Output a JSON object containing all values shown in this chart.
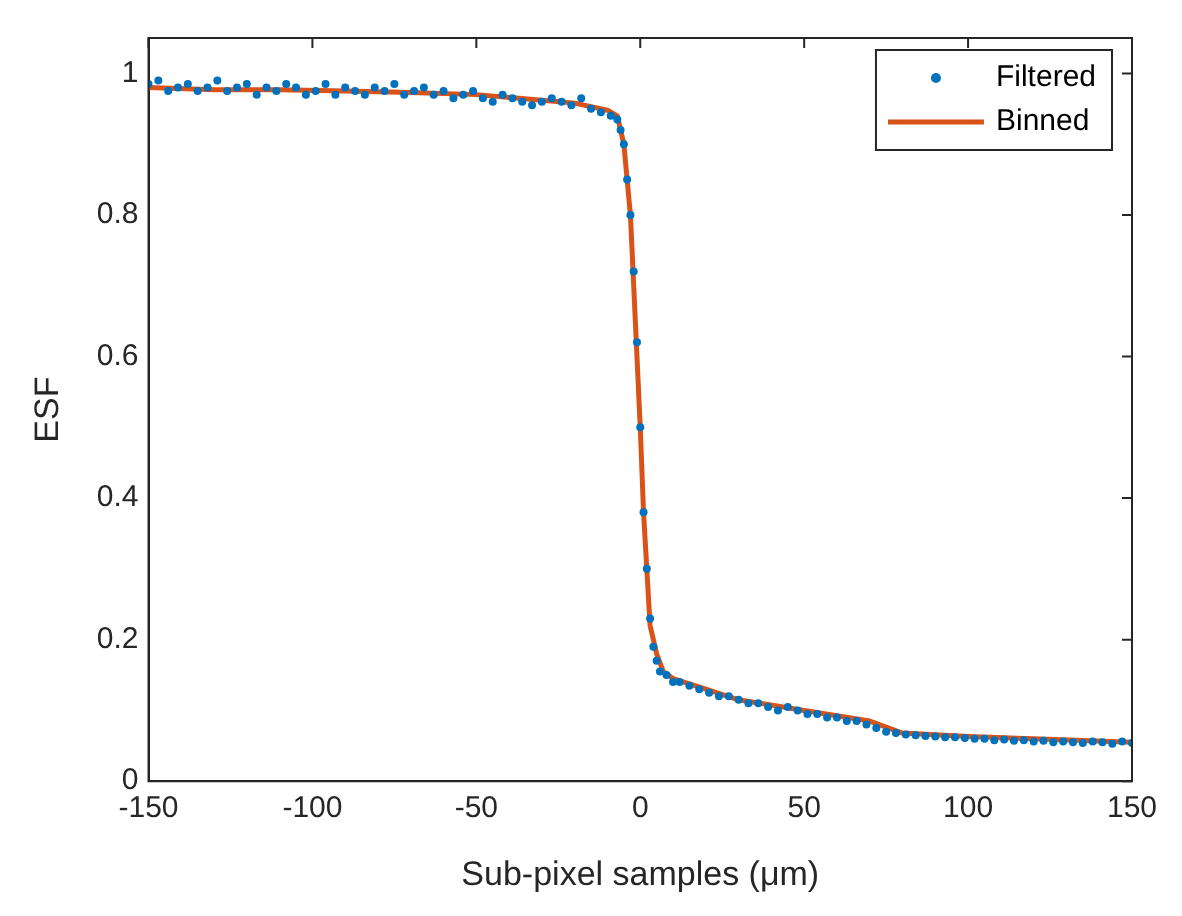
{
  "chart_data": {
    "type": "scatter",
    "xlabel": "Sub-pixel samples (μm)",
    "ylabel": "ESF",
    "xlim": [
      -150,
      150
    ],
    "xticks": [
      -150,
      -100,
      -50,
      0,
      50,
      100,
      150
    ],
    "ylim": [
      0,
      1.05
    ],
    "yticks": [
      0,
      0.2,
      0.4,
      0.6,
      0.8,
      1
    ],
    "grid": false,
    "legend": "top right",
    "series": [
      {
        "name": "Filtered",
        "type": "scatter",
        "marker": "circle",
        "color": "#0072bd",
        "x": [
          -150,
          -147,
          -144,
          -141,
          -138,
          -135,
          -132,
          -129,
          -126,
          -123,
          -120,
          -117,
          -114,
          -111,
          -108,
          -105,
          -102,
          -99,
          -96,
          -93,
          -90,
          -87,
          -84,
          -81,
          -78,
          -75,
          -72,
          -69,
          -66,
          -63,
          -60,
          -57,
          -54,
          -51,
          -48,
          -45,
          -42,
          -39,
          -36,
          -33,
          -30,
          -27,
          -24,
          -21,
          -18,
          -15,
          -12,
          -9,
          -7,
          -6,
          -5,
          -4,
          -3,
          -2,
          -1,
          0,
          1,
          2,
          3,
          4,
          5,
          6,
          8,
          10,
          12,
          15,
          18,
          21,
          24,
          27,
          30,
          33,
          36,
          39,
          42,
          45,
          48,
          51,
          54,
          57,
          60,
          63,
          66,
          69,
          72,
          75,
          78,
          81,
          84,
          87,
          90,
          93,
          96,
          99,
          102,
          105,
          108,
          111,
          114,
          117,
          120,
          123,
          126,
          129,
          132,
          135,
          138,
          141,
          144,
          147,
          150
        ],
        "values": [
          0.985,
          0.99,
          0.975,
          0.98,
          0.985,
          0.975,
          0.98,
          0.99,
          0.975,
          0.98,
          0.985,
          0.97,
          0.98,
          0.975,
          0.985,
          0.98,
          0.97,
          0.975,
          0.985,
          0.97,
          0.98,
          0.975,
          0.97,
          0.98,
          0.975,
          0.985,
          0.97,
          0.975,
          0.98,
          0.97,
          0.975,
          0.965,
          0.97,
          0.975,
          0.965,
          0.96,
          0.97,
          0.965,
          0.96,
          0.955,
          0.96,
          0.965,
          0.96,
          0.955,
          0.965,
          0.95,
          0.945,
          0.94,
          0.935,
          0.92,
          0.9,
          0.85,
          0.8,
          0.72,
          0.62,
          0.5,
          0.38,
          0.3,
          0.23,
          0.19,
          0.17,
          0.155,
          0.15,
          0.14,
          0.14,
          0.135,
          0.13,
          0.125,
          0.12,
          0.12,
          0.115,
          0.11,
          0.11,
          0.105,
          0.1,
          0.105,
          0.1,
          0.095,
          0.095,
          0.09,
          0.09,
          0.085,
          0.085,
          0.08,
          0.075,
          0.07,
          0.068,
          0.066,
          0.065,
          0.064,
          0.063,
          0.062,
          0.062,
          0.061,
          0.06,
          0.06,
          0.058,
          0.059,
          0.057,
          0.058,
          0.056,
          0.057,
          0.055,
          0.056,
          0.055,
          0.054,
          0.056,
          0.055,
          0.053,
          0.056,
          0.054
        ]
      },
      {
        "name": "Binned",
        "type": "line",
        "marker": "none",
        "line_style": "solid",
        "color": "#d95319",
        "x": [
          -150,
          -130,
          -110,
          -90,
          -70,
          -50,
          -30,
          -20,
          -10,
          -7,
          -5,
          -3,
          -1,
          0,
          1,
          3,
          5,
          7,
          10,
          20,
          30,
          50,
          70,
          80,
          100,
          120,
          150
        ],
        "values": [
          0.98,
          0.977,
          0.977,
          0.975,
          0.973,
          0.97,
          0.962,
          0.958,
          0.948,
          0.94,
          0.9,
          0.8,
          0.6,
          0.5,
          0.38,
          0.22,
          0.18,
          0.155,
          0.145,
          0.13,
          0.115,
          0.1,
          0.085,
          0.068,
          0.063,
          0.06,
          0.055
        ]
      }
    ]
  }
}
